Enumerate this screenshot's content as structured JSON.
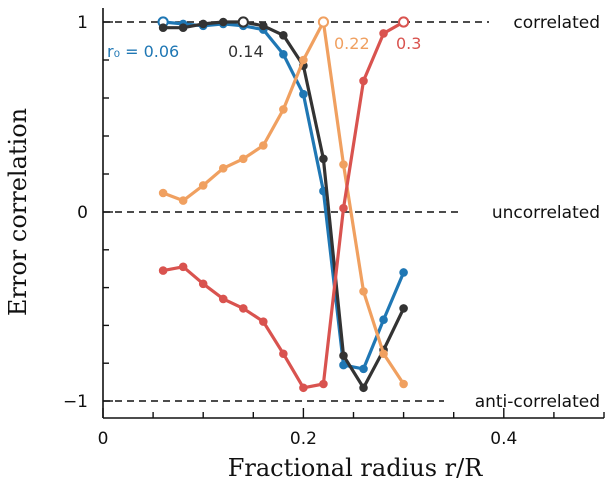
{
  "chart_data": {
    "type": "line",
    "xlabel": "Fractional radius r/R",
    "ylabel": "Error correlation",
    "xlim": [
      0,
      0.5
    ],
    "ylim": [
      -1.1,
      1.05
    ],
    "x_ticks": [
      {
        "value": 0,
        "label": "0"
      },
      {
        "value": 0.2,
        "label": "0.2"
      },
      {
        "value": 0.4,
        "label": "0.4"
      }
    ],
    "y_ticks": [
      {
        "value": 1,
        "label": "1"
      },
      {
        "value": 0,
        "label": "0"
      },
      {
        "value": -1,
        "label": "−1"
      }
    ],
    "reference_lines": [
      {
        "y": 1,
        "label": "correlated"
      },
      {
        "y": 0,
        "label": "uncorrelated"
      },
      {
        "y": -1,
        "label": "anti-correlated"
      }
    ],
    "series": [
      {
        "name": "r₀ = 0.06",
        "r0": 0.06,
        "color": "#1f77b4",
        "x": [
          0.06,
          0.08,
          0.1,
          0.12,
          0.14,
          0.16,
          0.18,
          0.2,
          0.22,
          0.24,
          0.26,
          0.28,
          0.3
        ],
        "y": [
          1.0,
          0.99,
          0.98,
          0.99,
          0.98,
          0.96,
          0.83,
          0.62,
          0.11,
          -0.81,
          -0.83,
          -0.57,
          -0.32
        ]
      },
      {
        "name": "0.14",
        "r0": 0.14,
        "color": "#333333",
        "x": [
          0.06,
          0.08,
          0.1,
          0.12,
          0.14,
          0.16,
          0.18,
          0.2,
          0.22,
          0.24,
          0.26,
          0.28,
          0.3
        ],
        "y": [
          0.97,
          0.97,
          0.99,
          1.0,
          1.0,
          0.98,
          0.93,
          0.77,
          0.28,
          -0.76,
          -0.93,
          -0.73,
          -0.51
        ]
      },
      {
        "name": "0.22",
        "r0": 0.22,
        "color": "#f0a060",
        "x": [
          0.06,
          0.08,
          0.1,
          0.12,
          0.14,
          0.16,
          0.18,
          0.2,
          0.22,
          0.24,
          0.26,
          0.28,
          0.3
        ],
        "y": [
          0.1,
          0.06,
          0.14,
          0.23,
          0.28,
          0.35,
          0.54,
          0.8,
          1.0,
          0.25,
          -0.42,
          -0.75,
          -0.91
        ]
      },
      {
        "name": "0.3",
        "r0": 0.3,
        "color": "#d9534f",
        "x": [
          0.06,
          0.08,
          0.1,
          0.12,
          0.14,
          0.16,
          0.18,
          0.2,
          0.22,
          0.24,
          0.26,
          0.28,
          0.3
        ],
        "y": [
          -0.31,
          -0.29,
          -0.38,
          -0.46,
          -0.51,
          -0.58,
          -0.75,
          -0.93,
          -0.91,
          0.02,
          0.69,
          0.94,
          1.0
        ]
      }
    ],
    "grid": false,
    "legend": "inline labels near top"
  }
}
